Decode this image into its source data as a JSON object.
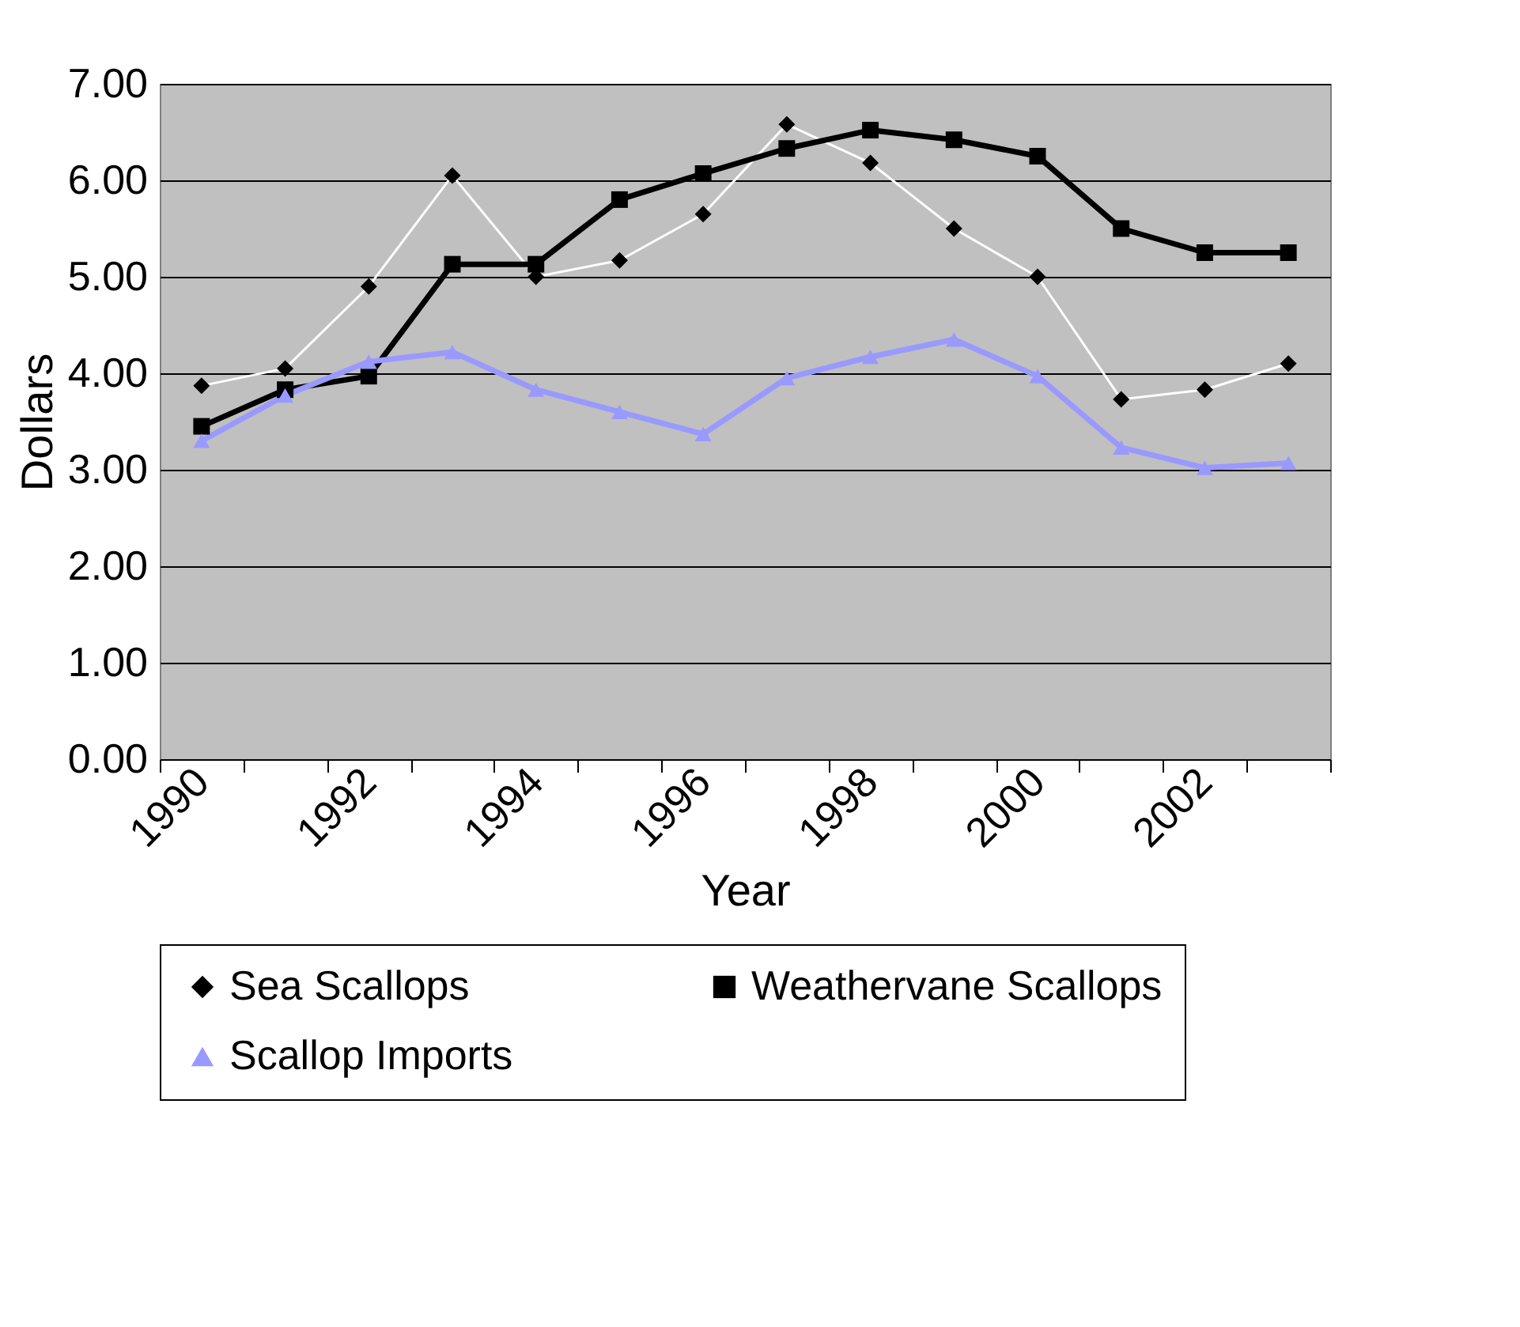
{
  "chart_data": {
    "type": "line",
    "xlabel": "Year",
    "ylabel": "Dollars",
    "categories": [
      "1990",
      null,
      "1992",
      null,
      "1994",
      null,
      "1996",
      null,
      "1998",
      null,
      "2000",
      null,
      "2002",
      null
    ],
    "series": [
      {
        "name": "Sea Scallops",
        "color": "#000000",
        "marker": "diamond",
        "line_style": "solid",
        "values": [
          3.87,
          4.05,
          4.9,
          6.05,
          5.0,
          5.17,
          5.65,
          6.58,
          6.18,
          5.5,
          5.0,
          3.73,
          3.83,
          4.1
        ]
      },
      {
        "name": "Weathervane Scallops",
        "color": "#000000",
        "marker": "square",
        "values": [
          3.45,
          3.83,
          3.97,
          5.13,
          5.13,
          5.8,
          6.07,
          6.33,
          6.52,
          6.42,
          6.25,
          5.5,
          5.25,
          5.25
        ]
      },
      {
        "name": "Scallop Imports",
        "color": "#9999ff",
        "marker": "triangle",
        "values": [
          3.3,
          3.77,
          4.12,
          4.22,
          3.83,
          3.6,
          3.37,
          3.95,
          4.17,
          4.35,
          3.97,
          3.23,
          3.02,
          3.07
        ]
      }
    ],
    "ylim": [
      0,
      7
    ],
    "yticks": [
      {
        "value": 0,
        "label": "0.00"
      },
      {
        "value": 1,
        "label": "1.00"
      },
      {
        "value": 2,
        "label": "2.00"
      },
      {
        "value": 3,
        "label": "3.00"
      },
      {
        "value": 4,
        "label": "4.00"
      },
      {
        "value": 5,
        "label": "5.00"
      },
      {
        "value": 6,
        "label": "6.00"
      },
      {
        "value": 7,
        "label": "7.00"
      }
    ],
    "grid": "y",
    "legend": "bottom"
  }
}
